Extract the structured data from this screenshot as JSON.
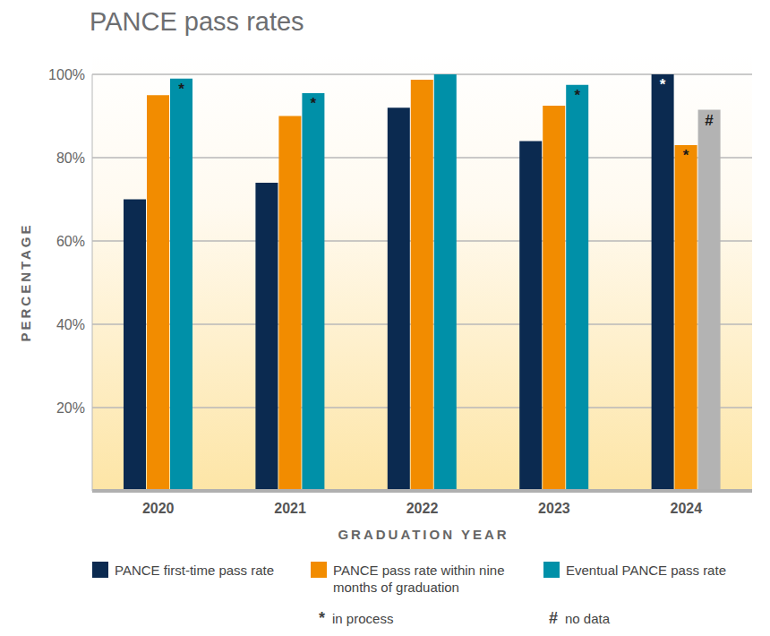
{
  "chart_data": {
    "type": "bar",
    "title": "PANCE pass rates",
    "x_label": "GRADUATION YEAR",
    "y_label": "PERCENTAGE",
    "categories": [
      "2020",
      "2021",
      "2022",
      "2023",
      "2024"
    ],
    "series": [
      {
        "name": "PANCE first-time pass rate",
        "color": "#0b2a50",
        "values": [
          70,
          74,
          92,
          84,
          100
        ],
        "markers": [
          null,
          null,
          null,
          null,
          "*"
        ]
      },
      {
        "name": "PANCE pass rate within nine months of graduation",
        "color": "#f28c00",
        "values": [
          95,
          90,
          98.7,
          92.5,
          83
        ],
        "markers": [
          null,
          null,
          null,
          null,
          "*"
        ]
      },
      {
        "name": "Eventual PANCE pass rate",
        "color": "#0090a8",
        "colors": [
          "#0090a8",
          "#0090a8",
          "#0090a8",
          "#0090a8",
          "#b3b3b3"
        ],
        "values": [
          99,
          95.5,
          100,
          97.5,
          91.5
        ],
        "markers": [
          "*",
          "*",
          null,
          "*",
          "#"
        ]
      }
    ],
    "notes": [
      {
        "symbol": "*",
        "label": "in process"
      },
      {
        "symbol": "#",
        "label": "no data"
      }
    ],
    "ylim": [
      0,
      100
    ],
    "yticks": [
      {
        "value": 20,
        "label": "20%"
      },
      {
        "value": 40,
        "label": "40%"
      },
      {
        "value": 60,
        "label": "60%"
      },
      {
        "value": 80,
        "label": "80%"
      },
      {
        "value": 100,
        "label": "100%"
      }
    ],
    "grid": true,
    "legend": "bottom"
  }
}
